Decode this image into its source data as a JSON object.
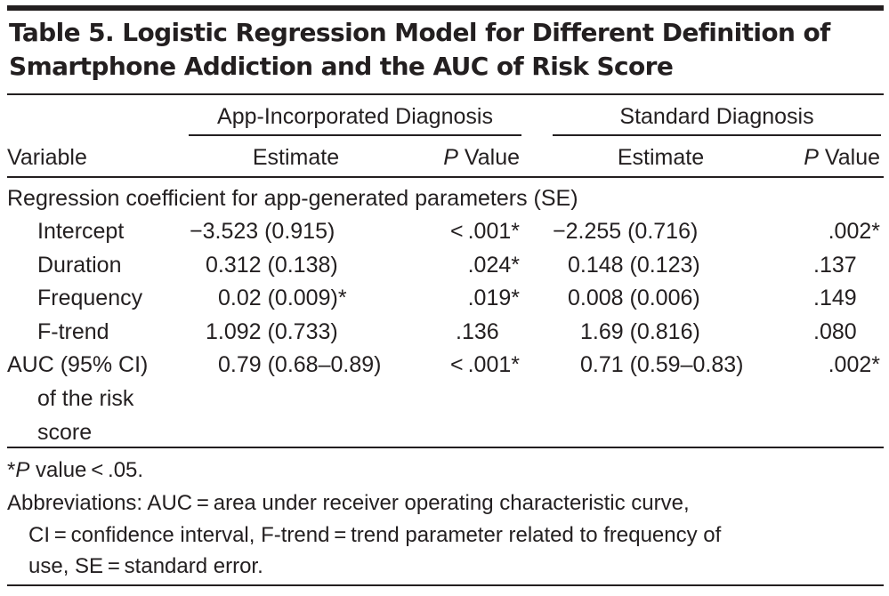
{
  "title_line1": "Table 5. Logistic Regression Model for Different Definition of",
  "title_line2": "Smartphone Addiction and the AUC of Risk Score",
  "groups": {
    "app": "App-Incorporated Diagnosis",
    "standard": "Standard Diagnosis"
  },
  "columns": {
    "variable": "Variable",
    "estimate": "Estimate",
    "p_italic": "P",
    "p_rest": " Value"
  },
  "section_label": "Regression coefficient for app-generated parameters (SE)",
  "rows": [
    {
      "label": "Intercept",
      "app_est": "−3.523 (0.915)",
      "app_p": "< .001*",
      "std_est": "−2.255 (0.716)",
      "std_p": ".002*"
    },
    {
      "label": "Duration",
      "app_est": "0.312 (0.138)",
      "app_p": ".024*",
      "std_est": "0.148 (0.123)",
      "std_p": ".137"
    },
    {
      "label": "Frequency",
      "app_est": "0.02 (0.009)*",
      "app_p": ".019*",
      "std_est": "0.008 (0.006)",
      "std_p": ".149"
    },
    {
      "label": "F-trend",
      "app_est": "1.092 (0.733)",
      "app_p": ".136",
      "std_est": "1.69 (0.816)",
      "std_p": ".080"
    }
  ],
  "auc": {
    "label_line1": "AUC (95% CI)",
    "label_line2": "of the risk",
    "label_line3": "score",
    "app_est": "0.79 (0.68–0.89)",
    "app_p": "< .001*",
    "std_est": "0.71 (0.59–0.83)",
    "std_p": ".002*"
  },
  "footnotes": {
    "sig_star": "*",
    "sig_p": "P",
    "sig_rest": " value < .05.",
    "abbr_line1": "Abbreviations: AUC = area under receiver operating characteristic curve,",
    "abbr_line2": "CI = confidence interval, F-trend = trend parameter related to frequency of",
    "abbr_line3": "use, SE = standard error."
  }
}
